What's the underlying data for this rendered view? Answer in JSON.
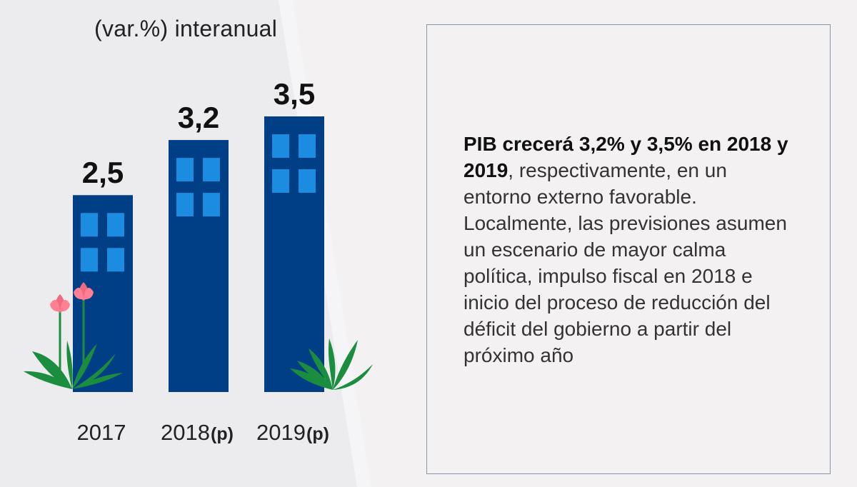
{
  "chart_data": {
    "type": "bar",
    "title": "(var.%) interanual",
    "categories": [
      "2017",
      "2018",
      "2019"
    ],
    "category_tags": [
      "",
      "(p)",
      "(p)"
    ],
    "values": [
      2.5,
      3.2,
      3.5
    ],
    "value_labels": [
      "2,5",
      "3,2",
      "3,5"
    ],
    "xlabel": "",
    "ylabel": "",
    "grid": false,
    "legend": "none",
    "colors": {
      "bar": "#003f86",
      "window": "#1b8ce0"
    }
  },
  "text_box": {
    "bold_text": "PIB crecerá 3,2% y 3,5% en 2018 y 2019",
    "body_text": ", respectivamente, en un entorno externo favorable. Localmente, las previsiones asumen un escenario de mayor calma política, impulso fiscal en 2018 e inicio del proceso de reducción del déficit del gobierno a partir del próximo año"
  },
  "decorations": {
    "plant_colors": {
      "leaf": "#1b8d3e",
      "flower": "#ef6a80"
    }
  }
}
